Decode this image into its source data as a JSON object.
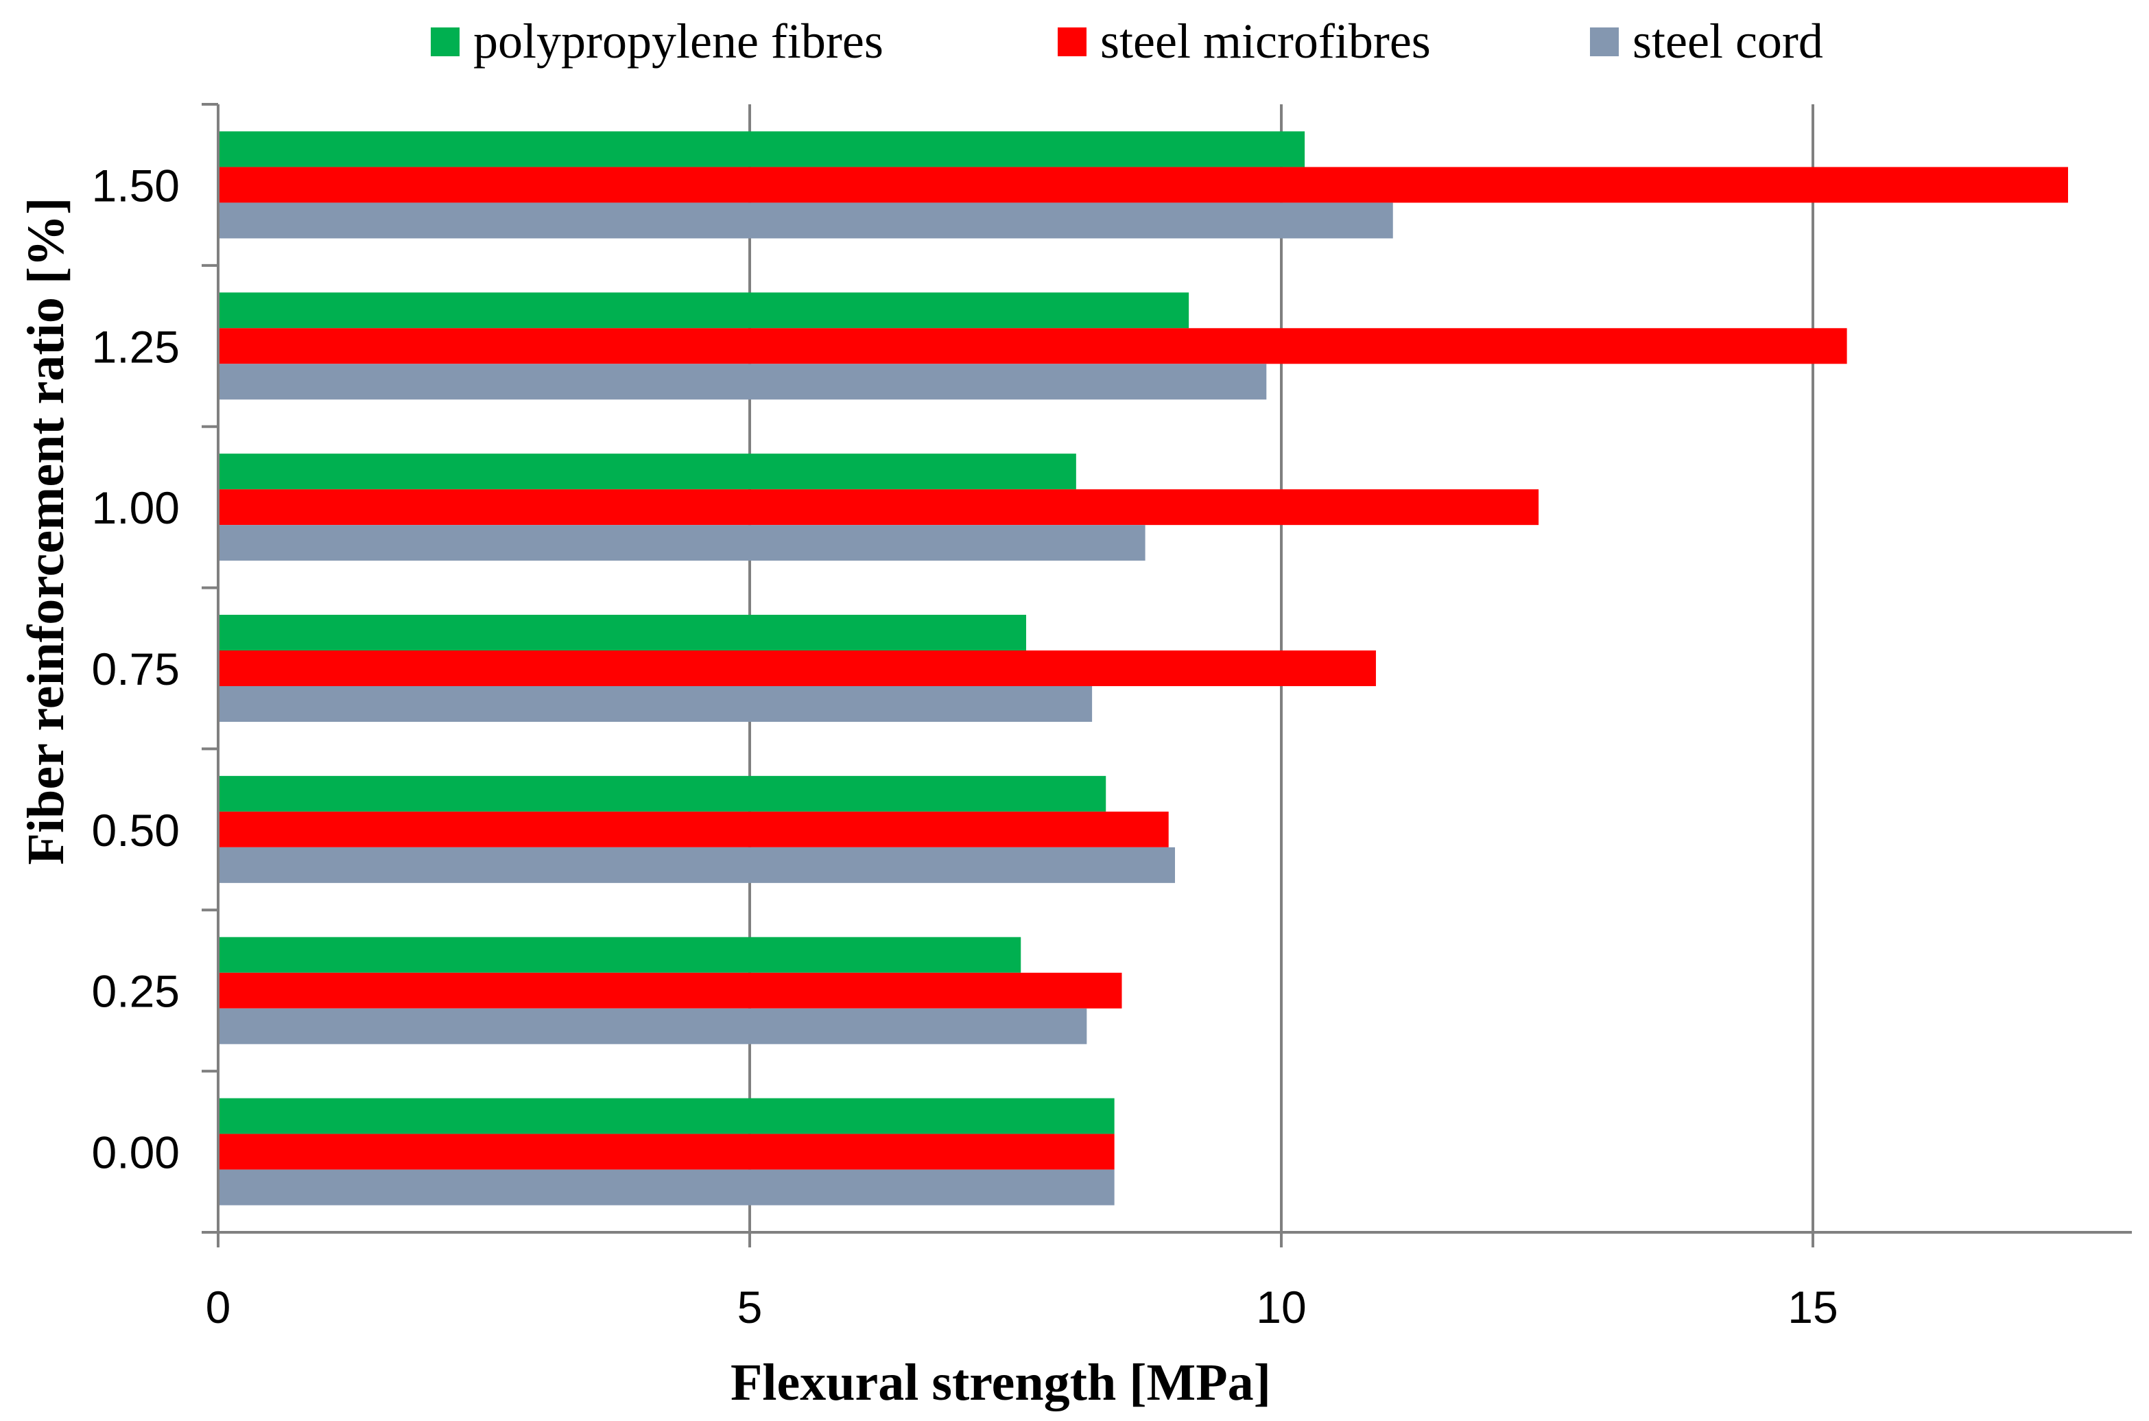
{
  "chart_data": {
    "type": "bar",
    "orientation": "horizontal",
    "title": "",
    "xlabel": "Flexural strength [MPa]",
    "ylabel": "Fiber reinforcement ratio [%]",
    "categories": [
      "0.00",
      "0.25",
      "0.50",
      "0.75",
      "1.00",
      "1.25",
      "1.50"
    ],
    "xlim": [
      0,
      18
    ],
    "xticks": [
      0,
      5,
      10,
      15
    ],
    "grid": "vertical major gridlines",
    "legend_position": "top",
    "series": [
      {
        "name": "polypropylene fibres",
        "color": "#00B050",
        "values": [
          8.43,
          7.55,
          8.35,
          7.6,
          8.07,
          9.13,
          10.22
        ]
      },
      {
        "name": "steel microfibres",
        "color": "#FF0000",
        "values": [
          8.43,
          8.5,
          8.94,
          10.89,
          12.42,
          15.32,
          17.4
        ]
      },
      {
        "name": "steel cord",
        "color": "#8497B0",
        "values": [
          8.43,
          8.17,
          9.0,
          8.22,
          8.72,
          9.86,
          11.05
        ]
      }
    ]
  }
}
